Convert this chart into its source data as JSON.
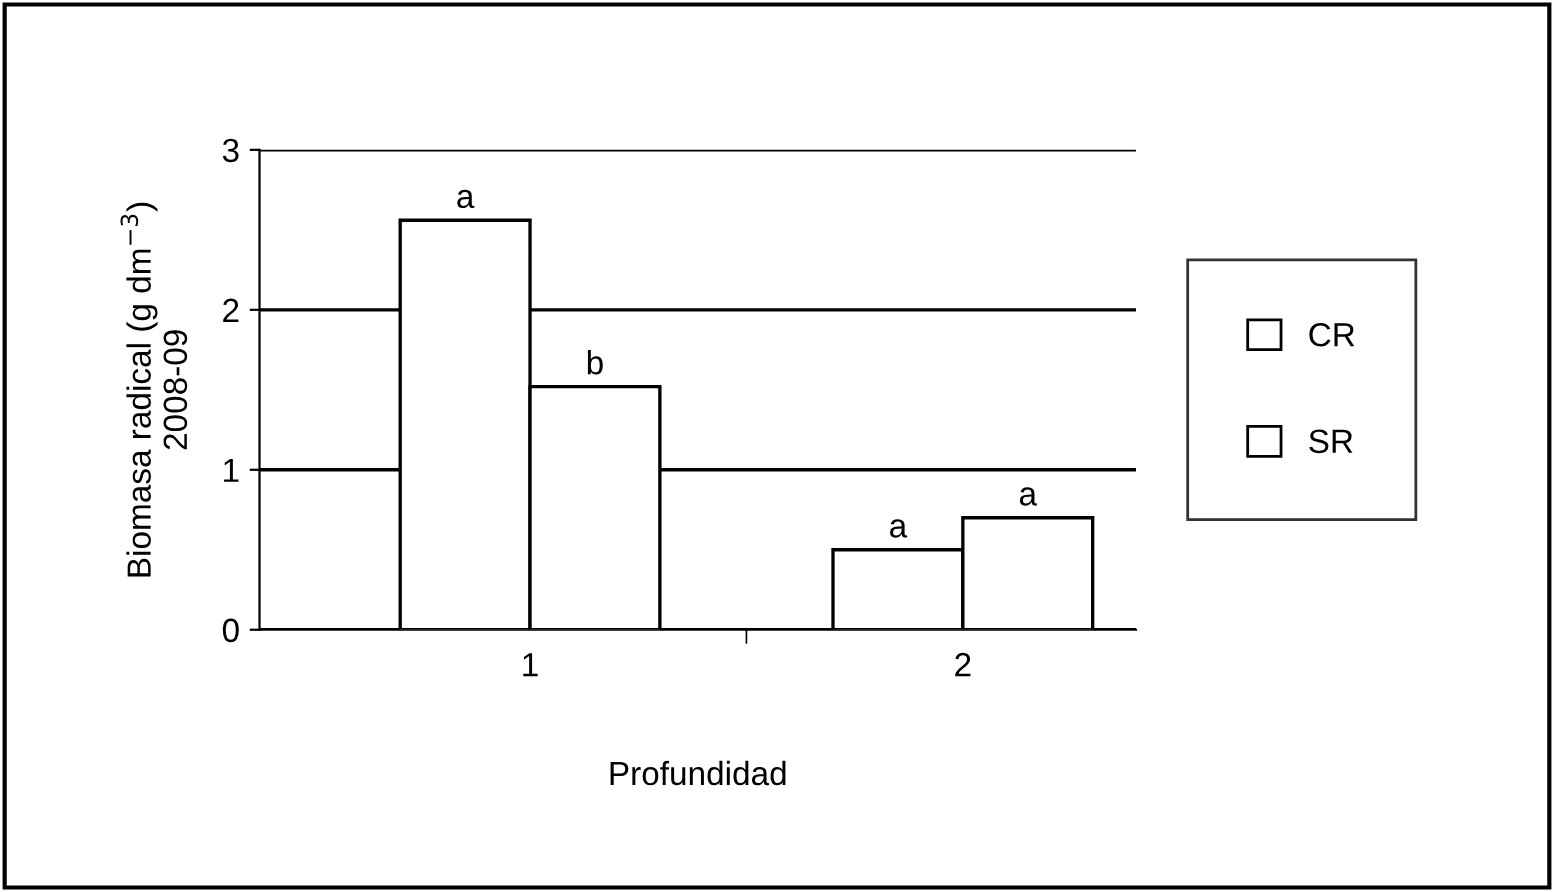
{
  "chart_data": {
    "type": "bar",
    "xlabel": "Profundidad",
    "ylabel": "Biomasa radical (g dm$^{−3}$)\n2008-09",
    "categories": [
      "1",
      "2"
    ],
    "series": [
      {
        "name": "CR",
        "color": "#ffffff",
        "values": [
          2.56,
          0.5
        ],
        "value_labels": [
          "a",
          "a"
        ]
      },
      {
        "name": "SR",
        "color": "#ffffff",
        "values": [
          1.52,
          0.7
        ],
        "value_labels": [
          "b",
          "a"
        ]
      }
    ],
    "ylim": [
      0,
      3
    ],
    "yticks": [
      0,
      1,
      2,
      3
    ],
    "grid": "y",
    "legend": "right"
  }
}
